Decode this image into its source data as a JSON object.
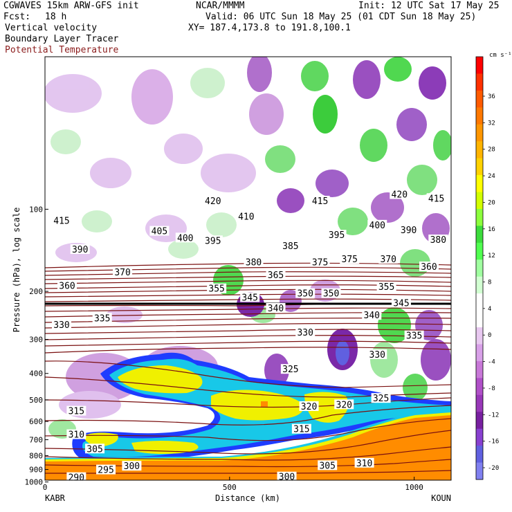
{
  "header": {
    "left_title": "CGWAVES 15km ARW-GFS init",
    "org": "NCAR/MMMM",
    "init": "Init: 12 UTC Sat 17 May 25",
    "fcst_label": "Fcst:",
    "fcst_value": "18 h",
    "valid": "Valid: 06 UTC Sun 18 May 25 (01 CDT Sun 18 May 25)",
    "field1": "Vertical velocity",
    "xy": "XY= 187.4,173.8 to 191.8,100.1",
    "field2": "Boundary Layer Tracer",
    "field3": "Potential Temperature"
  },
  "colors": {
    "theta_contour": "#7a1010",
    "tracer_outer": "#1e3cff",
    "tracer_mid": "#18c8e8",
    "tracer_inner": "#f0f000",
    "tracer_core": "#ff8c00",
    "boundary_layer": "#ff8c00"
  },
  "chart_data": {
    "type": "heatmap",
    "title": "Vertical velocity",
    "ylabel": "Pressure (hPa), log scale",
    "xlabel": "Distance (km)",
    "y_scale": "log",
    "y_ticks": [
      "100",
      "200",
      "300",
      "400",
      "500",
      "600",
      "700",
      "800",
      "900",
      "1000"
    ],
    "x_ticks": [
      "0",
      "500",
      "1000"
    ],
    "x_range_km": [
      0,
      1100
    ],
    "start_label": "KABR",
    "end_label": "KOUN",
    "colorbar": {
      "units": "cm s⁻¹",
      "tick_labels": [
        "36",
        "32",
        "28",
        "24",
        "20",
        "16",
        "12",
        "8",
        "4",
        "0",
        "-4",
        "-8",
        "-12",
        "-16",
        "-20"
      ],
      "colors": [
        "#ff0000",
        "#ff3000",
        "#ff5a00",
        "#ff7800",
        "#ff9600",
        "#ffb400",
        "#ffd200",
        "#ffff00",
        "#d2ff00",
        "#8cff3c",
        "#3cdc3c",
        "#50ff50",
        "#a0ffa0",
        "#d2ffd2",
        "#ffffff",
        "#ffffff",
        "#e8c8f0",
        "#d8a0e8",
        "#c878d8",
        "#b050c8",
        "#9838b8",
        "#7820a0",
        "#8840d0",
        "#6060e0",
        "#8080f0"
      ]
    },
    "contour_labels": [
      {
        "text": "415",
        "x_km": 45,
        "p": 110
      },
      {
        "text": "420",
        "x_km": 455,
        "p": 93
      },
      {
        "text": "410",
        "x_km": 545,
        "p": 106
      },
      {
        "text": "415",
        "x_km": 745,
        "p": 93
      },
      {
        "text": "420",
        "x_km": 960,
        "p": 88
      },
      {
        "text": "415",
        "x_km": 1060,
        "p": 91
      },
      {
        "text": "405",
        "x_km": 310,
        "p": 120
      },
      {
        "text": "400",
        "x_km": 380,
        "p": 127
      },
      {
        "text": "395",
        "x_km": 455,
        "p": 130
      },
      {
        "text": "395",
        "x_km": 790,
        "p": 124
      },
      {
        "text": "400",
        "x_km": 900,
        "p": 114
      },
      {
        "text": "390",
        "x_km": 985,
        "p": 119
      },
      {
        "text": "380",
        "x_km": 1065,
        "p": 129
      },
      {
        "text": "390",
        "x_km": 95,
        "p": 140
      },
      {
        "text": "385",
        "x_km": 665,
        "p": 136
      },
      {
        "text": "370",
        "x_km": 210,
        "p": 170
      },
      {
        "text": "380",
        "x_km": 565,
        "p": 156
      },
      {
        "text": "375",
        "x_km": 745,
        "p": 156
      },
      {
        "text": "375",
        "x_km": 825,
        "p": 152
      },
      {
        "text": "370",
        "x_km": 930,
        "p": 152
      },
      {
        "text": "360",
        "x_km": 1040,
        "p": 162
      },
      {
        "text": "360",
        "x_km": 60,
        "p": 190
      },
      {
        "text": "365",
        "x_km": 625,
        "p": 174
      },
      {
        "text": "355",
        "x_km": 465,
        "p": 195
      },
      {
        "text": "345",
        "x_km": 555,
        "p": 210
      },
      {
        "text": "350",
        "x_km": 705,
        "p": 203
      },
      {
        "text": "350",
        "x_km": 775,
        "p": 203
      },
      {
        "text": "355",
        "x_km": 925,
        "p": 192
      },
      {
        "text": "340",
        "x_km": 625,
        "p": 230
      },
      {
        "text": "345",
        "x_km": 965,
        "p": 220
      },
      {
        "text": "330",
        "x_km": 45,
        "p": 265
      },
      {
        "text": "335",
        "x_km": 155,
        "p": 250
      },
      {
        "text": "340",
        "x_km": 885,
        "p": 244
      },
      {
        "text": "330",
        "x_km": 705,
        "p": 282
      },
      {
        "text": "335",
        "x_km": 1000,
        "p": 290
      },
      {
        "text": "330",
        "x_km": 900,
        "p": 340
      },
      {
        "text": "325",
        "x_km": 665,
        "p": 385
      },
      {
        "text": "325",
        "x_km": 910,
        "p": 492
      },
      {
        "text": "320",
        "x_km": 715,
        "p": 527
      },
      {
        "text": "320",
        "x_km": 810,
        "p": 519
      },
      {
        "text": "315",
        "x_km": 85,
        "p": 548
      },
      {
        "text": "315",
        "x_km": 695,
        "p": 638
      },
      {
        "text": "310",
        "x_km": 85,
        "p": 668
      },
      {
        "text": "305",
        "x_km": 135,
        "p": 754
      },
      {
        "text": "305",
        "x_km": 765,
        "p": 868
      },
      {
        "text": "310",
        "x_km": 865,
        "p": 850
      },
      {
        "text": "300",
        "x_km": 235,
        "p": 872
      },
      {
        "text": "295",
        "x_km": 165,
        "p": 900
      },
      {
        "text": "290",
        "x_km": 85,
        "p": 960
      },
      {
        "text": "300",
        "x_km": 655,
        "p": 955
      }
    ]
  }
}
